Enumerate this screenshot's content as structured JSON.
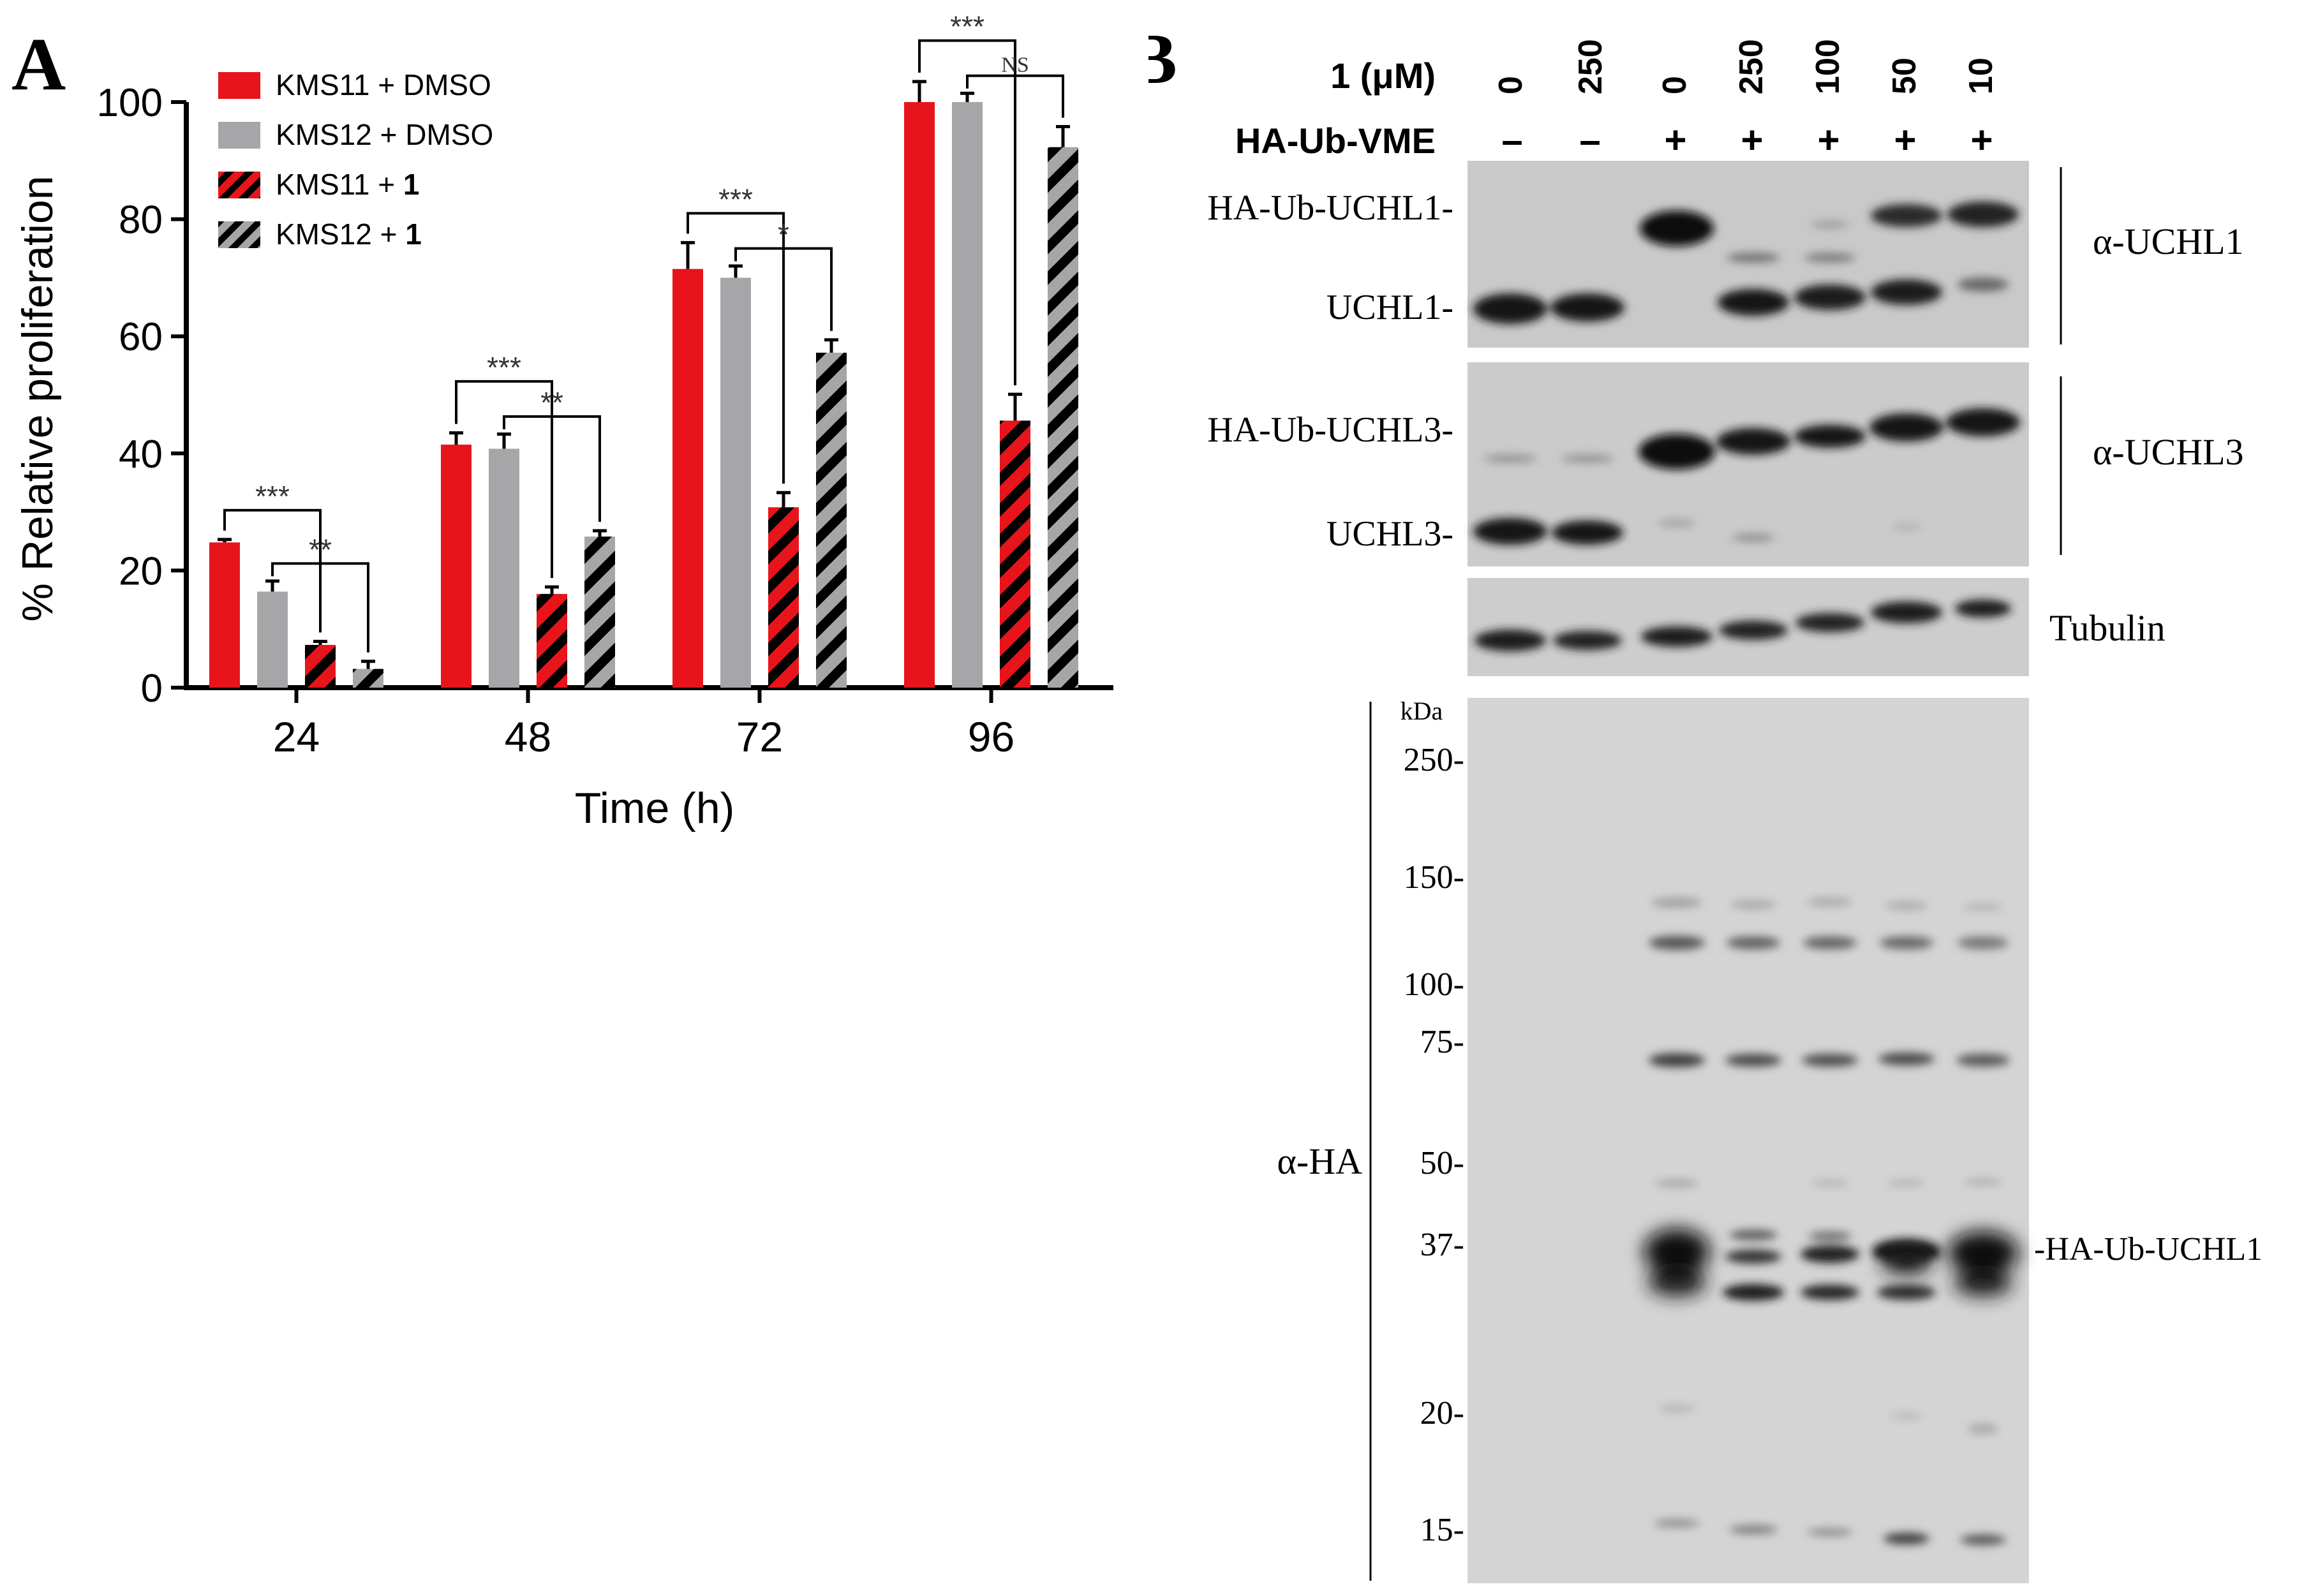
{
  "panel_a": {
    "letter": "A",
    "chart_data": {
      "type": "bar",
      "xlabel": "Time (h)",
      "ylabel": "% Relative proliferation",
      "ylim": [
        0,
        100
      ],
      "yticks": [
        "0",
        "20",
        "40",
        "60",
        "80",
        "100"
      ],
      "categories": [
        "24",
        "48",
        "72",
        "96"
      ],
      "grid": false,
      "legend_position": "top-left",
      "series": [
        {
          "name": "KMS11 + DMSO",
          "legend_base": "KMS11 + DMSO",
          "legend_bold": "",
          "fill": "#e8141b",
          "hatched": false,
          "values": [
            24.8,
            41.5,
            71.5,
            100.0
          ],
          "errors": [
            0.5,
            2.0,
            4.5,
            3.5
          ]
        },
        {
          "name": "KMS12 + DMSO",
          "legend_base": "KMS12 + DMSO",
          "legend_bold": "",
          "fill": "#a6a6a8",
          "hatched": false,
          "values": [
            16.4,
            40.8,
            70.0,
            100.0
          ],
          "errors": [
            1.8,
            2.5,
            2.0,
            1.5
          ]
        },
        {
          "name": "KMS11 + 1",
          "legend_base": "KMS11 + ",
          "legend_bold": "1",
          "fill": "#e8141b",
          "hatched": true,
          "values": [
            7.3,
            16.0,
            30.8,
            45.6
          ],
          "errors": [
            0.6,
            1.2,
            2.5,
            4.5
          ]
        },
        {
          "name": "KMS12 + 1",
          "legend_base": "KMS12 + ",
          "legend_bold": "1",
          "fill": "#a6a6a8",
          "hatched": true,
          "values": [
            3.2,
            25.8,
            57.2,
            92.3
          ],
          "errors": [
            1.3,
            1.0,
            2.2,
            3.5
          ]
        }
      ],
      "annotations": [
        {
          "group": 0,
          "from": 0,
          "to": 2,
          "label": "***"
        },
        {
          "group": 0,
          "from": 1,
          "to": 3,
          "label": "**"
        },
        {
          "group": 1,
          "from": 0,
          "to": 2,
          "label": "***"
        },
        {
          "group": 1,
          "from": 1,
          "to": 3,
          "label": "**"
        },
        {
          "group": 2,
          "from": 0,
          "to": 2,
          "label": "***"
        },
        {
          "group": 2,
          "from": 1,
          "to": 3,
          "label": "*"
        },
        {
          "group": 3,
          "from": 0,
          "to": 2,
          "label": "***"
        },
        {
          "group": 3,
          "from": 1,
          "to": 3,
          "label": "NS"
        }
      ]
    }
  },
  "panel_b": {
    "letter": "B",
    "dose_label": "1 (μM)",
    "vme_label": "HA-Ub-VME",
    "lanes": [
      {
        "dose": "0",
        "vme": "–"
      },
      {
        "dose": "250",
        "vme": "–"
      },
      {
        "dose": "0",
        "vme": "+"
      },
      {
        "dose": "250",
        "vme": "+"
      },
      {
        "dose": "100",
        "vme": "+"
      },
      {
        "dose": "50",
        "vme": "+"
      },
      {
        "dose": "10",
        "vme": "+"
      }
    ],
    "blot_uchl1": {
      "band_top": "HA-Ub-UCHL1-",
      "band_bottom": "UCHL1-",
      "antibody": "α-UCHL1"
    },
    "blot_uchl3": {
      "band_top": "HA-Ub-UCHL3-",
      "band_bottom": "UCHL3-",
      "antibody": "α-UCHL3"
    },
    "blot_tubulin": {
      "antibody": "Tubulin"
    },
    "blot_ha": {
      "antibody": "α-HA",
      "kda_label": "kDa",
      "markers": [
        "250-",
        "150-",
        "100-",
        "75-",
        "50-",
        "37-",
        "20-",
        "15-"
      ],
      "band_label": "-HA-Ub-UCHL1"
    }
  }
}
